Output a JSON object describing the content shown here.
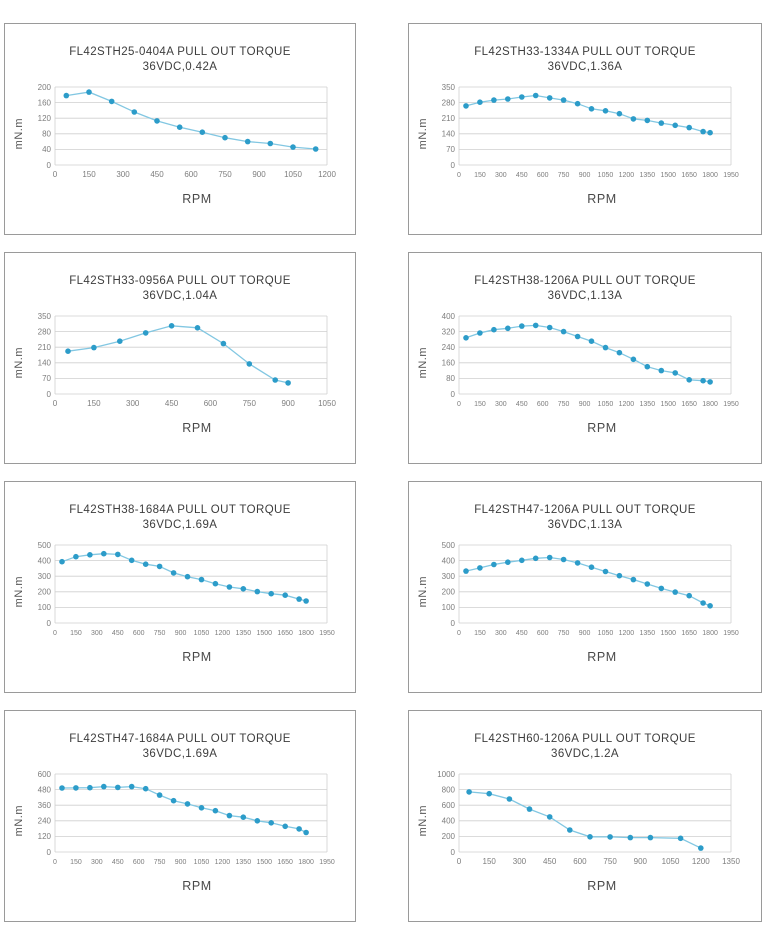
{
  "styles": {
    "line_color": "#82C7E2",
    "marker_color": "#2C9CC9",
    "grid_color": "#CFCFCF",
    "box_border_color": "#9A9A9A",
    "title_color": "#3D3D3D",
    "tick_color": "#7D7D7D",
    "axis_label_color": "#555555"
  },
  "chart_data": [
    {
      "type": "line",
      "title": "FL42STH25-0404A PULL OUT TORQUE",
      "subtitle": "36VDC,0.42A",
      "ylabel": "mN.m",
      "xlabel": "RPM",
      "ylim": [
        0,
        200
      ],
      "ytick_step": 40,
      "xlim": [
        0,
        1200
      ],
      "xtick_step": 150,
      "grid": "horizontal",
      "legend": "none",
      "x": [
        50,
        150,
        250,
        350,
        450,
        550,
        650,
        750,
        850,
        950,
        1050,
        1150
      ],
      "y": [
        178,
        187,
        163,
        136,
        113,
        97,
        84,
        70,
        60,
        55,
        46,
        41
      ]
    },
    {
      "type": "line",
      "title": "FL42STH33-1334A PULL OUT TORQUE",
      "subtitle": "36VDC,1.36A",
      "ylabel": "mN.m",
      "xlabel": "RPM",
      "ylim": [
        0,
        350
      ],
      "ytick_step": 70,
      "xlim": [
        0,
        1950
      ],
      "xtick_step": 150,
      "grid": "horizontal",
      "legend": "none",
      "x": [
        50,
        150,
        250,
        350,
        450,
        550,
        650,
        750,
        850,
        950,
        1050,
        1150,
        1250,
        1350,
        1450,
        1550,
        1650,
        1750,
        1800
      ],
      "y": [
        265,
        282,
        291,
        296,
        305,
        312,
        301,
        291,
        275,
        252,
        243,
        230,
        207,
        200,
        188,
        178,
        168,
        150,
        145
      ]
    },
    {
      "type": "line",
      "title": "FL42STH33-0956A PULL OUT TORQUE",
      "subtitle": "36VDC,1.04A",
      "ylabel": "mN.m",
      "xlabel": "RPM",
      "ylim": [
        0,
        350
      ],
      "ytick_step": 70,
      "xlim": [
        0,
        1050
      ],
      "xtick_step": 150,
      "grid": "horizontal",
      "legend": "none",
      "x": [
        50,
        150,
        250,
        350,
        450,
        550,
        650,
        750,
        850,
        900
      ],
      "y": [
        192,
        208,
        237,
        274,
        306,
        297,
        226,
        135,
        63,
        50
      ]
    },
    {
      "type": "line",
      "title": "FL42STH38-1206A PULL OUT TORQUE",
      "subtitle": "36VDC,1.13A",
      "ylabel": "mN.m",
      "xlabel": "RPM",
      "ylim": [
        0,
        400
      ],
      "ytick_step": 80,
      "xlim": [
        0,
        1950
      ],
      "xtick_step": 150,
      "grid": "horizontal",
      "legend": "none",
      "x": [
        50,
        150,
        250,
        350,
        450,
        550,
        650,
        750,
        850,
        950,
        1050,
        1150,
        1250,
        1350,
        1450,
        1550,
        1650,
        1750,
        1800
      ],
      "y": [
        288,
        313,
        330,
        337,
        348,
        352,
        341,
        320,
        295,
        271,
        238,
        212,
        178,
        140,
        120,
        108,
        73,
        68,
        62
      ]
    },
    {
      "type": "line",
      "title": "FL42STH38-1684A PULL OUT TORQUE",
      "subtitle": "36VDC,1.69A",
      "ylabel": "mN.m",
      "xlabel": "RPM",
      "ylim": [
        0,
        500
      ],
      "ytick_step": 100,
      "xlim": [
        0,
        1950
      ],
      "xtick_step": 150,
      "grid": "horizontal",
      "legend": "none",
      "x": [
        50,
        150,
        250,
        350,
        450,
        550,
        650,
        750,
        850,
        950,
        1050,
        1150,
        1250,
        1350,
        1450,
        1550,
        1650,
        1750,
        1800
      ],
      "y": [
        393,
        425,
        437,
        444,
        440,
        402,
        377,
        363,
        321,
        297,
        278,
        252,
        231,
        219,
        201,
        188,
        178,
        153,
        141
      ]
    },
    {
      "type": "line",
      "title": "FL42STH47-1206A PULL OUT TORQUE",
      "subtitle": "36VDC,1.13A",
      "ylabel": "mN.m",
      "xlabel": "RPM",
      "ylim": [
        0,
        500
      ],
      "ytick_step": 100,
      "xlim": [
        0,
        1950
      ],
      "xtick_step": 150,
      "grid": "horizontal",
      "legend": "none",
      "x": [
        50,
        150,
        250,
        350,
        450,
        550,
        650,
        750,
        850,
        950,
        1050,
        1150,
        1250,
        1350,
        1450,
        1550,
        1650,
        1750,
        1800
      ],
      "y": [
        333,
        353,
        375,
        390,
        402,
        415,
        420,
        407,
        385,
        358,
        330,
        303,
        278,
        250,
        222,
        198,
        175,
        128,
        110
      ]
    },
    {
      "type": "line",
      "title": "FL42STH47-1684A PULL OUT TORQUE",
      "subtitle": "36VDC,1.69A",
      "ylabel": "mN.m",
      "xlabel": "RPM",
      "ylim": [
        0,
        600
      ],
      "ytick_step": 120,
      "xlim": [
        0,
        1950
      ],
      "xtick_step": 150,
      "grid": "horizontal",
      "legend": "none",
      "x": [
        50,
        150,
        250,
        350,
        450,
        550,
        650,
        750,
        850,
        950,
        1050,
        1150,
        1250,
        1350,
        1450,
        1550,
        1650,
        1750,
        1800
      ],
      "y": [
        492,
        493,
        495,
        503,
        497,
        503,
        487,
        438,
        395,
        370,
        340,
        318,
        280,
        268,
        240,
        225,
        198,
        178,
        150
      ]
    },
    {
      "type": "line",
      "title": "FL42STH60-1206A PULL OUT TORQUE",
      "subtitle": "36VDC,1.2A",
      "ylabel": "mN.m",
      "xlabel": "RPM",
      "ylim": [
        0,
        1000
      ],
      "ytick_step": 200,
      "xlim": [
        0,
        1350
      ],
      "xtick_step": 150,
      "grid": "horizontal",
      "legend": "none",
      "x": [
        50,
        150,
        250,
        350,
        450,
        550,
        650,
        750,
        850,
        950,
        1100,
        1200
      ],
      "y": [
        770,
        748,
        680,
        550,
        450,
        282,
        195,
        193,
        185,
        185,
        175,
        50
      ]
    }
  ]
}
